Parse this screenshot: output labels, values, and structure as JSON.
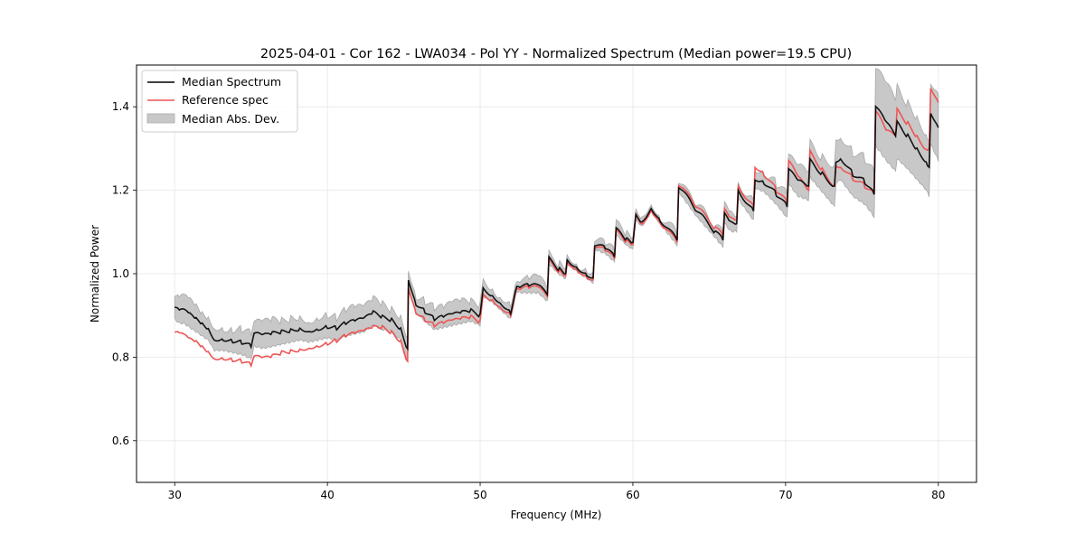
{
  "chart_data": {
    "type": "line",
    "title": "2025-04-01 - Cor 162 - LWA034 - Pol YY - Normalized Spectrum (Median power=19.5 CPU)",
    "xlabel": "Frequency (MHz)",
    "ylabel": "Normalized Power",
    "xlim": [
      27.5,
      82.5
    ],
    "ylim": [
      0.5,
      1.5
    ],
    "xticks": [
      30,
      40,
      50,
      60,
      70,
      80
    ],
    "xtick_labels": [
      "30",
      "40",
      "50",
      "60",
      "70",
      "80"
    ],
    "yticks": [
      0.6,
      0.8,
      1.0,
      1.2,
      1.4
    ],
    "ytick_labels": [
      "0.6",
      "0.8",
      "1.0",
      "1.2",
      "1.4"
    ],
    "grid": true,
    "legend": {
      "placement": "top-left",
      "entries": [
        {
          "label": "Median Spectrum",
          "type": "line",
          "color": "#000000"
        },
        {
          "label": "Reference spec",
          "type": "line",
          "color": "#ee5555"
        },
        {
          "label": "Median Abs. Dev.",
          "type": "fill",
          "color": "#c8c8c8"
        }
      ]
    },
    "x": [
      30.0,
      30.3,
      30.6,
      31.0,
      31.4,
      31.8,
      32.2,
      32.6,
      33.2,
      33.8,
      34.4,
      35.0,
      35.2,
      35.8,
      36.4,
      37.0,
      37.6,
      38.2,
      38.8,
      39.4,
      40.0,
      40.6,
      41.2,
      41.8,
      42.4,
      43.0,
      43.6,
      44.2,
      44.8,
      45.25,
      45.3,
      45.8,
      46.4,
      47.0,
      47.6,
      48.2,
      48.8,
      49.4,
      50.0,
      50.2,
      50.8,
      51.4,
      52.0,
      52.4,
      52.6,
      53.2,
      53.8,
      54.4,
      54.5,
      55.2,
      55.6,
      55.7,
      56.4,
      57.0,
      57.4,
      57.5,
      58.2,
      58.8,
      58.9,
      59.6,
      60.0,
      60.2,
      60.6,
      61.2,
      61.8,
      62.9,
      63.0,
      64.2,
      65.4,
      65.9,
      66.0,
      66.4,
      66.8,
      66.9,
      67.9,
      68.0,
      68.6,
      69.4,
      70.1,
      70.2,
      70.8,
      71.5,
      71.6,
      72.4,
      73.2,
      73.3,
      73.6,
      74.4,
      75.2,
      75.8,
      75.9,
      76.6,
      77.2,
      77.3,
      78.0,
      78.6,
      79.2,
      79.4,
      79.5,
      80.0
    ],
    "series": [
      {
        "name": "Median Spectrum",
        "color": "#000000",
        "values": [
          0.92,
          0.91,
          0.91,
          0.9,
          0.89,
          0.88,
          0.87,
          0.845,
          0.845,
          0.84,
          0.835,
          0.825,
          0.855,
          0.85,
          0.855,
          0.86,
          0.865,
          0.87,
          0.865,
          0.87,
          0.875,
          0.87,
          0.88,
          0.885,
          0.89,
          0.905,
          0.895,
          0.89,
          0.87,
          0.82,
          0.99,
          0.93,
          0.91,
          0.89,
          0.895,
          0.9,
          0.905,
          0.91,
          0.9,
          0.965,
          0.95,
          0.93,
          0.91,
          0.975,
          0.97,
          0.97,
          0.97,
          0.95,
          1.035,
          1.01,
          1.0,
          1.035,
          1.015,
          1.0,
          0.99,
          1.07,
          1.06,
          1.04,
          1.105,
          1.08,
          1.07,
          1.14,
          1.125,
          1.16,
          1.13,
          1.08,
          1.21,
          1.15,
          1.1,
          1.08,
          1.14,
          1.12,
          1.12,
          1.2,
          1.15,
          1.23,
          1.22,
          1.19,
          1.16,
          1.25,
          1.22,
          1.21,
          1.27,
          1.24,
          1.21,
          1.27,
          1.28,
          1.24,
          1.22,
          1.19,
          1.4,
          1.36,
          1.33,
          1.36,
          1.33,
          1.3,
          1.27,
          1.255,
          1.39,
          1.35
        ]
      },
      {
        "name": "Reference spec",
        "color": "#ee5555",
        "values": [
          0.86,
          0.855,
          0.85,
          0.84,
          0.835,
          0.825,
          0.815,
          0.8,
          0.8,
          0.795,
          0.79,
          0.78,
          0.8,
          0.795,
          0.8,
          0.81,
          0.815,
          0.82,
          0.825,
          0.83,
          0.835,
          0.84,
          0.85,
          0.855,
          0.86,
          0.87,
          0.87,
          0.86,
          0.84,
          0.79,
          0.97,
          0.91,
          0.89,
          0.875,
          0.88,
          0.885,
          0.89,
          0.895,
          0.885,
          0.95,
          0.94,
          0.92,
          0.905,
          0.97,
          0.965,
          0.965,
          0.965,
          0.945,
          1.03,
          1.005,
          0.995,
          1.03,
          1.01,
          0.995,
          0.985,
          1.065,
          1.055,
          1.035,
          1.1,
          1.075,
          1.065,
          1.14,
          1.12,
          1.155,
          1.125,
          1.075,
          1.215,
          1.16,
          1.11,
          1.09,
          1.15,
          1.13,
          1.13,
          1.21,
          1.16,
          1.26,
          1.24,
          1.2,
          1.17,
          1.27,
          1.23,
          1.2,
          1.29,
          1.25,
          1.21,
          1.26,
          1.26,
          1.23,
          1.21,
          1.19,
          1.39,
          1.34,
          1.33,
          1.39,
          1.36,
          1.33,
          1.3,
          1.3,
          1.45,
          1.41
        ]
      }
    ],
    "mad": [
      0.025,
      0.025,
      0.025,
      0.025,
      0.025,
      0.025,
      0.025,
      0.025,
      0.025,
      0.025,
      0.025,
      0.025,
      0.025,
      0.025,
      0.025,
      0.025,
      0.025,
      0.025,
      0.025,
      0.025,
      0.025,
      0.025,
      0.025,
      0.025,
      0.025,
      0.025,
      0.025,
      0.025,
      0.025,
      0.025,
      0.022,
      0.02,
      0.02,
      0.02,
      0.02,
      0.02,
      0.02,
      0.02,
      0.02,
      0.015,
      0.015,
      0.015,
      0.015,
      0.012,
      0.012,
      0.012,
      0.012,
      0.012,
      0.008,
      0.008,
      0.008,
      0.008,
      0.008,
      0.008,
      0.008,
      0.008,
      0.008,
      0.008,
      0.008,
      0.008,
      0.008,
      0.008,
      0.008,
      0.008,
      0.008,
      0.008,
      0.01,
      0.01,
      0.01,
      0.012,
      0.015,
      0.015,
      0.015,
      0.018,
      0.018,
      0.02,
      0.02,
      0.02,
      0.022,
      0.03,
      0.03,
      0.03,
      0.035,
      0.04,
      0.045,
      0.05,
      0.05,
      0.05,
      0.05,
      0.05,
      0.09,
      0.085,
      0.08,
      0.08,
      0.075,
      0.07,
      0.065,
      0.065,
      0.075,
      0.075
    ]
  }
}
